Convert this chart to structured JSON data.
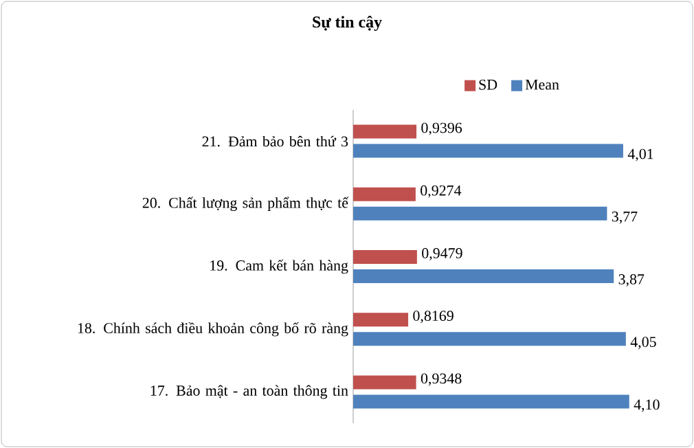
{
  "chart_data": {
    "type": "bar",
    "orientation": "horizontal",
    "title": "Sự tin cậy",
    "categories": [
      "21. Đảm bảo bên thứ 3",
      "20. Chất lượng sản phẩm thực tế",
      "19.  Cam kết bán hàng",
      "18. Chính sách điều khoản công bố rõ ràng",
      "17. Bảo mật - an toàn thông tin"
    ],
    "series": [
      {
        "name": "SD",
        "color": "#c0504d",
        "values": [
          0.9396,
          0.9274,
          0.9479,
          0.8169,
          0.9348
        ],
        "value_labels": [
          "0,9396",
          "0,9274",
          "0,9479",
          "0,8169",
          "0,9348"
        ]
      },
      {
        "name": "Mean",
        "color": "#4f81bd",
        "values": [
          4.01,
          3.77,
          3.87,
          4.05,
          4.1
        ],
        "value_labels": [
          "4,01",
          "3,77",
          "3,87",
          "4,05",
          "4,10"
        ]
      }
    ],
    "legend": "top",
    "tick_labels": "y"
  }
}
